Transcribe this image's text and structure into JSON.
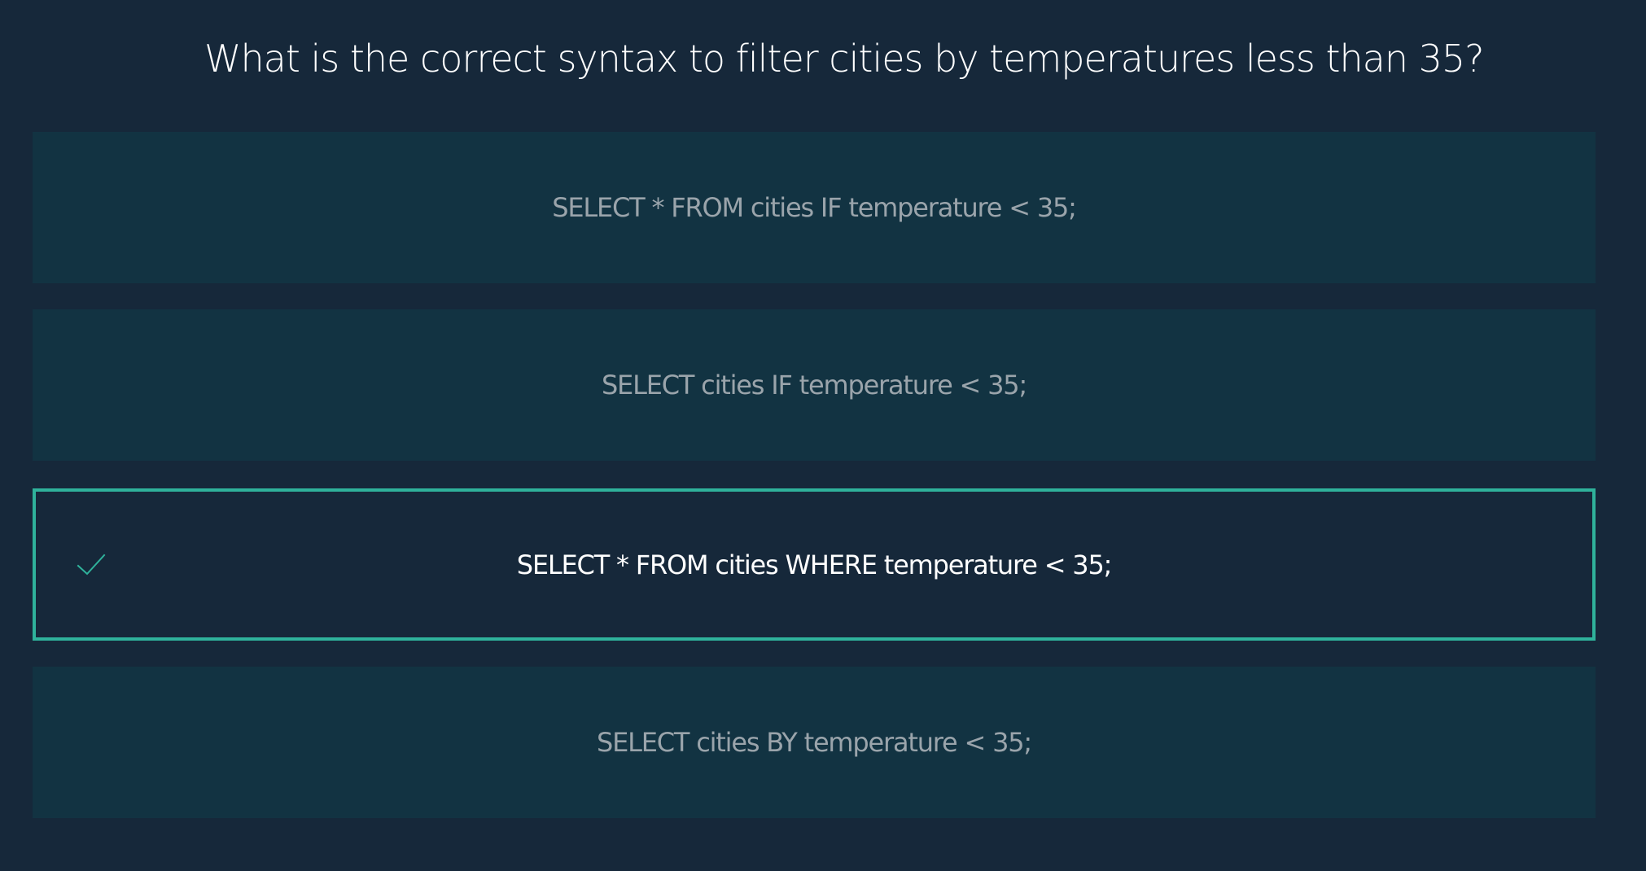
{
  "question": {
    "text": "What is the correct syntax to filter cities by temperatures less than 35?"
  },
  "options": [
    {
      "label": "SELECT * FROM cities IF temperature < 35;",
      "selected": false
    },
    {
      "label": "SELECT cities IF temperature < 35;",
      "selected": false
    },
    {
      "label": "SELECT * FROM cities WHERE temperature < 35;",
      "selected": true,
      "icon": "check-icon"
    },
    {
      "label": "SELECT cities BY temperature < 35;",
      "selected": false
    }
  ],
  "colors": {
    "background": "#16283a",
    "option_background": "#123342",
    "accent": "#2fb29b",
    "option_text": "#9aa4ab",
    "selected_text": "#ffffff"
  }
}
